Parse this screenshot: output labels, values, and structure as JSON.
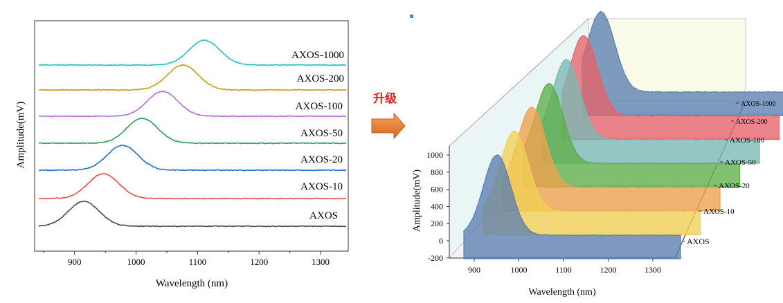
{
  "upgrade_label": "升级",
  "chart_data": [
    {
      "type": "line",
      "xlabel": "Wavelength (nm)",
      "ylabel": "Amplitude(mV)",
      "xlim": [
        835,
        1345
      ],
      "x_ticks": [
        900,
        1000,
        1100,
        1200,
        1300
      ],
      "stacked_offset": true,
      "series": [
        {
          "name": "AXOS",
          "peak_x": 915,
          "color": "#4a4a4a"
        },
        {
          "name": "AXOS-10",
          "peak_x": 947,
          "color": "#e84c4c"
        },
        {
          "name": "AXOS-20",
          "peak_x": 978,
          "color": "#1f6fd1"
        },
        {
          "name": "AXOS-50",
          "peak_x": 1010,
          "color": "#2e9e5a"
        },
        {
          "name": "AXOS-100",
          "peak_x": 1043,
          "color": "#b46fdb"
        },
        {
          "name": "AXOS-200",
          "peak_x": 1076,
          "color": "#c99a12"
        },
        {
          "name": "AXOS-1000",
          "peak_x": 1111,
          "color": "#1fc3c7"
        }
      ]
    },
    {
      "type": "area",
      "view": "3d-waterfall",
      "xlabel": "Wavelength (nm)",
      "ylabel": "Amplitude(mV)",
      "xlim": [
        860,
        1345
      ],
      "ylim": [
        -200,
        1100
      ],
      "x_ticks": [
        900,
        1000,
        1100,
        1200,
        1300
      ],
      "y_ticks": [
        -200,
        0,
        200,
        400,
        600,
        800,
        1000
      ],
      "series": [
        {
          "name": "AXOS",
          "peak_x": 945,
          "peak_y": 1000,
          "color": "#5b7fb0"
        },
        {
          "name": "AXOS-10",
          "peak_x": 978,
          "peak_y": 1000,
          "color": "#f2cf55"
        },
        {
          "name": "AXOS-20",
          "peak_x": 1010,
          "peak_y": 1000,
          "color": "#f0a04b"
        },
        {
          "name": "AXOS-50",
          "peak_x": 1043,
          "peak_y": 1000,
          "color": "#5fae4a"
        },
        {
          "name": "AXOS-100",
          "peak_x": 1076,
          "peak_y": 1000,
          "color": "#7ab8b4"
        },
        {
          "name": "AXOS-200",
          "peak_x": 1111,
          "peak_y": 1000,
          "color": "#e5636a"
        },
        {
          "name": "AXOS-1000",
          "peak_x": 1140,
          "peak_y": 1000,
          "color": "#5b7fb0"
        }
      ]
    }
  ]
}
